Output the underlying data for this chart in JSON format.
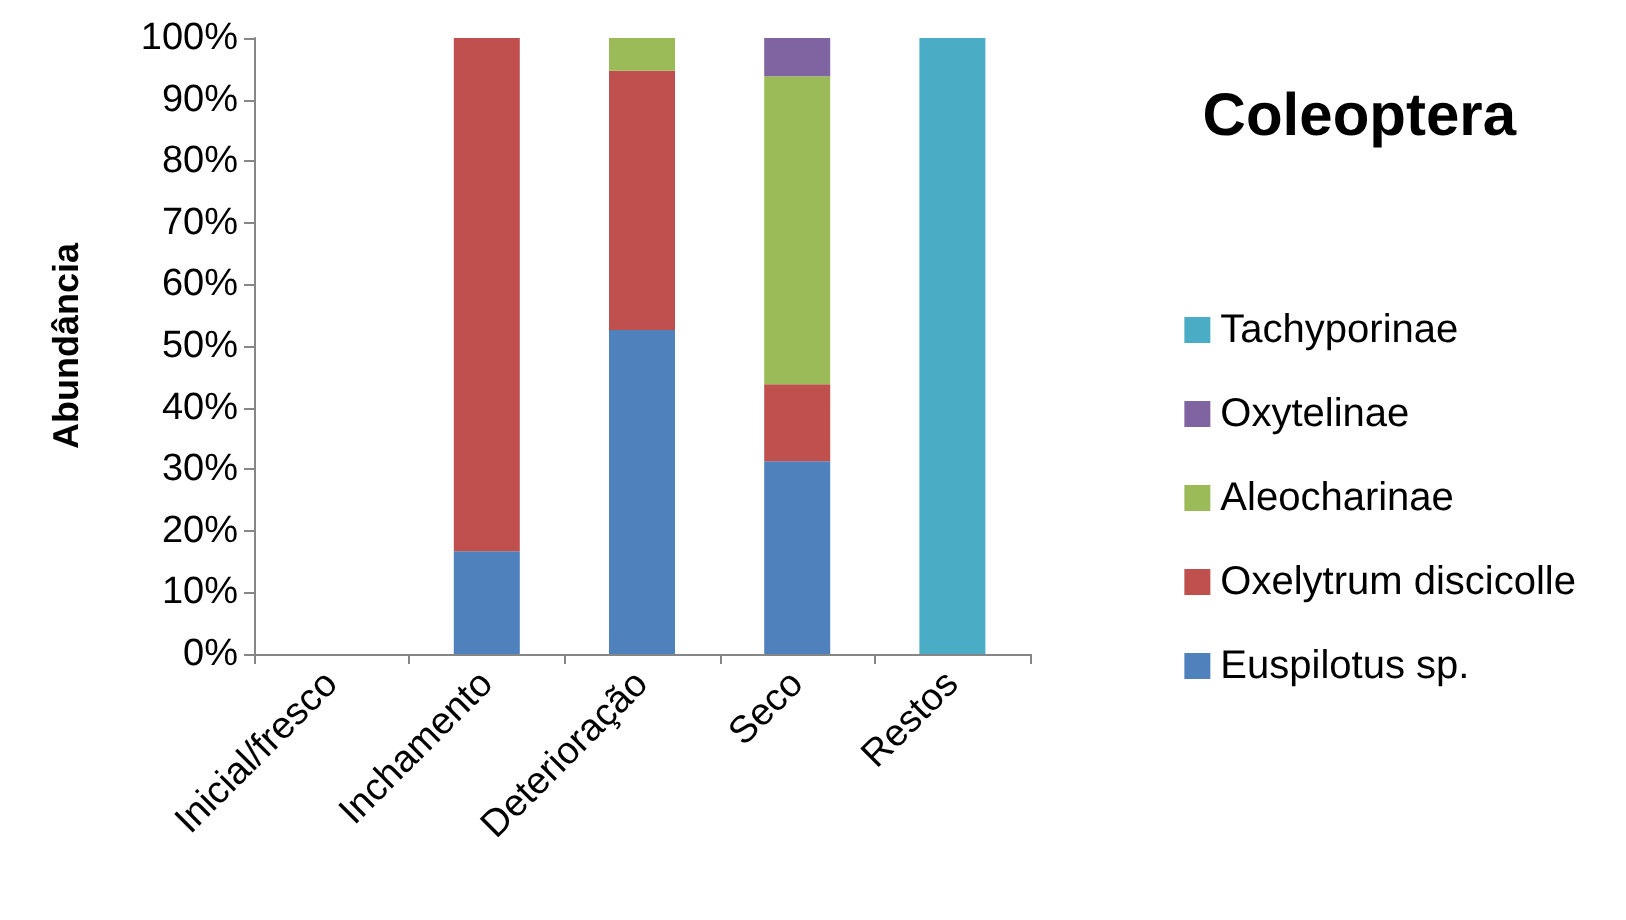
{
  "chart_data": {
    "type": "bar",
    "title": "Coleoptera",
    "ylabel": "Abundância",
    "stacked": true,
    "categories": [
      "Inicial/fresco",
      "Inchamento",
      "Deterioração",
      "Seco",
      "Restos"
    ],
    "series": [
      {
        "name": "Euspilotus sp.",
        "color": "#4f81bd",
        "values": [
          null,
          16.7,
          52.6,
          31.3,
          null
        ]
      },
      {
        "name": "Oxelytrum discicolle",
        "color": "#c0504d",
        "values": [
          null,
          83.3,
          42.1,
          12.5,
          null
        ]
      },
      {
        "name": "Aleocharinae",
        "color": "#9bbb59",
        "values": [
          null,
          null,
          5.3,
          50,
          null
        ]
      },
      {
        "name": "Oxytelinae",
        "color": "#8064a2",
        "values": [
          null,
          null,
          null,
          6.2,
          null
        ]
      },
      {
        "name": "Tachyporinae",
        "color": "#4bacc6",
        "values": [
          null,
          null,
          null,
          null,
          100
        ]
      }
    ],
    "ylim": [
      0,
      100
    ],
    "yticks": [
      {
        "value": 0,
        "label": "0%"
      },
      {
        "value": 10,
        "label": "10%"
      },
      {
        "value": 20,
        "label": "20%"
      },
      {
        "value": 30,
        "label": "30%"
      },
      {
        "value": 40,
        "label": "40%"
      },
      {
        "value": 50,
        "label": "50%"
      },
      {
        "value": 60,
        "label": "60%"
      },
      {
        "value": 70,
        "label": "70%"
      },
      {
        "value": 80,
        "label": "80%"
      },
      {
        "value": 90,
        "label": "90%"
      },
      {
        "value": 100,
        "label": "100%"
      }
    ],
    "grid": false,
    "legend": "right"
  }
}
